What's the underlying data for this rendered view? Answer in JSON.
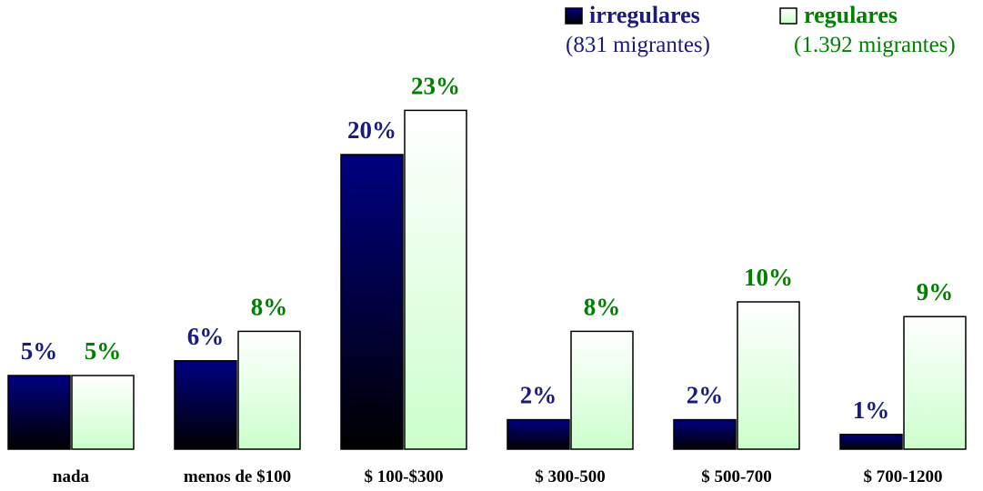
{
  "chart_data": {
    "type": "bar",
    "categories": [
      "nada",
      "menos de $100",
      "$ 100-$300",
      "$ 300-500",
      "$ 500-700",
      "$ 700-1200"
    ],
    "series": [
      {
        "name": "irregulares",
        "note": "(831 migrantes)",
        "color": "#000080",
        "gradient_end": "#000000",
        "label_color": "#1a1a80",
        "values": [
          5,
          6,
          20,
          2,
          2,
          1
        ],
        "value_labels": [
          "5%",
          "6%",
          "20%",
          "2%",
          "2%",
          "1%"
        ]
      },
      {
        "name": "regulares",
        "note": "(1.392 migrantes)",
        "color": "#ffffff",
        "gradient_end": "#ccffcc",
        "label_color": "#008000",
        "values": [
          5,
          8,
          23,
          8,
          10,
          9
        ],
        "value_labels": [
          "5%",
          "8%",
          "23%",
          "8%",
          "10%",
          "9%"
        ]
      }
    ]
  }
}
